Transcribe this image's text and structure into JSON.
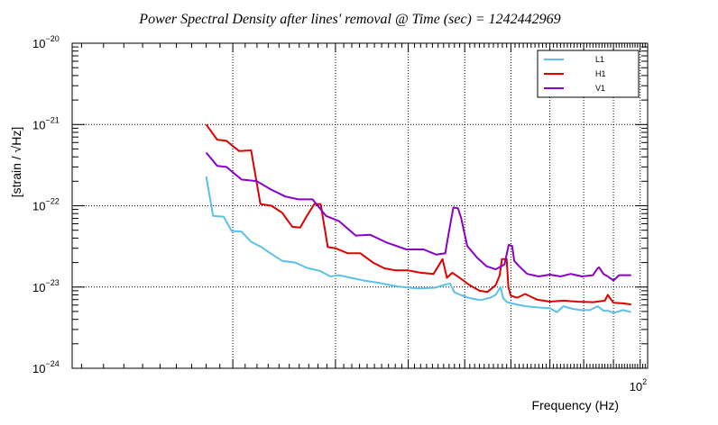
{
  "chart_data": {
    "type": "line",
    "title": "Power Spectral Density after lines' removal @ Time (sec) = 1242442969",
    "xlabel": "Frequency (Hz)",
    "ylabel": "[strain / √Hz]",
    "x_scale": "log",
    "y_scale": "log",
    "xlim": [
      10.6,
      103
    ],
    "ylim": [
      1e-24,
      1e-20
    ],
    "x_tick_labels": [
      {
        "value": 100,
        "base": "10",
        "exp": "2"
      }
    ],
    "y_tick_labels": [
      {
        "value": 1e-24,
        "base": "10",
        "exp": "−24"
      },
      {
        "value": 1e-23,
        "base": "10",
        "exp": "−23"
      },
      {
        "value": 1e-22,
        "base": "10",
        "exp": "−22"
      },
      {
        "value": 1e-21,
        "base": "10",
        "exp": "−21"
      },
      {
        "value": 1e-20,
        "base": "10",
        "exp": "−20"
      }
    ],
    "grid": true,
    "legend_position": "top-right",
    "series": [
      {
        "name": "L1",
        "color": "#5bc0eb",
        "x": [
          18.0,
          18.5,
          19.3,
          19.9,
          20.7,
          21.5,
          22.4,
          23.2,
          24.3,
          25.6,
          26.8,
          28.2,
          29.4,
          30.4,
          31.9,
          33.6,
          35.7,
          38.2,
          41.5,
          44.5,
          46.5,
          47.2,
          48.0,
          49.4,
          51.0,
          53.3,
          55.3,
          56.5,
          57.6,
          58.2,
          59.1,
          60.8,
          63.5,
          67.0,
          70.0,
          72.0,
          73.8,
          76.5,
          79.0,
          82.0,
          84.5,
          86.5,
          88.0,
          90.0,
          93.5,
          96.5
        ],
        "y": [
          2.3e-22,
          7.5e-23,
          7.3e-23,
          4.9e-23,
          4.8e-23,
          3.6e-23,
          3.1e-23,
          2.6e-23,
          2.1e-23,
          2e-23,
          1.72e-23,
          1.58e-23,
          1.35e-23,
          1.4e-23,
          1.3e-23,
          1.2e-23,
          1.12e-23,
          1.02e-23,
          9.6e-24,
          9.8e-24,
          1.08e-23,
          1.1e-23,
          8.6e-24,
          7.9e-24,
          7.3e-24,
          6.9e-24,
          7.4e-24,
          8e-24,
          1e-23,
          7.3e-24,
          6.5e-24,
          6.2e-24,
          5.8e-24,
          5.6e-24,
          5.5e-24,
          4.9e-24,
          5.8e-24,
          5.4e-24,
          5.2e-24,
          5.2e-24,
          5.8e-24,
          5.1e-24,
          5.1e-24,
          4.8e-24,
          5.2e-24,
          4.9e-24
        ]
      },
      {
        "name": "H1",
        "color": "#dd0000",
        "x": [
          18.0,
          18.8,
          19.5,
          20.5,
          21.5,
          22.3,
          23.3,
          24.3,
          25.3,
          26.1,
          26.8,
          27.6,
          28.3,
          29.1,
          30.0,
          31.5,
          33.1,
          34.8,
          36.4,
          38.1,
          40.0,
          42.0,
          44.2,
          45.8,
          46.6,
          47.6,
          49.0,
          51.0,
          53.0,
          54.7,
          56.5,
          57.4,
          57.9,
          59.0,
          59.4,
          60.0,
          61.5,
          63.5,
          66.5,
          70.0,
          74.0,
          78.0,
          83.0,
          87.0,
          88.0,
          90.0,
          93.5,
          96.5
        ],
        "y": [
          1e-21,
          6.5e-22,
          6.3e-22,
          4.7e-22,
          4.8e-22,
          1.05e-22,
          1e-22,
          8.2e-23,
          5.5e-23,
          5.4e-23,
          7.5e-23,
          1.05e-22,
          1.05e-22,
          3.1e-23,
          3e-23,
          2.6e-23,
          2.6e-23,
          2e-23,
          1.7e-23,
          1.6e-23,
          1.6e-23,
          1.5e-23,
          1.45e-23,
          2.2e-23,
          1.3e-23,
          1.5e-23,
          1.3e-23,
          1.05e-23,
          9e-24,
          8.7e-24,
          1.05e-23,
          1.4e-23,
          2.2e-23,
          2.2e-23,
          1e-23,
          7.8e-24,
          7.4e-24,
          8.2e-24,
          7e-24,
          6.6e-24,
          6.8e-24,
          6.6e-24,
          6.5e-24,
          6.8e-24,
          8e-24,
          6.4e-24,
          6.3e-24,
          6.1e-24
        ]
      },
      {
        "name": "V1",
        "color": "#8a00c6",
        "x": [
          18.0,
          18.8,
          19.5,
          20.7,
          22.0,
          23.2,
          24.6,
          25.9,
          27.4,
          28.9,
          30.4,
          32.5,
          34.4,
          36.8,
          39.7,
          42.5,
          44.7,
          46.3,
          46.7,
          47.8,
          48.7,
          49.3,
          50.5,
          52.5,
          54.5,
          56.5,
          58.5,
          59.5,
          60.3,
          60.8,
          62.0,
          64.0,
          67.0,
          70.0,
          73.0,
          76.0,
          79.5,
          83.0,
          84.5,
          85.0,
          86.5,
          88.0,
          90.0,
          92.0,
          96.5
        ],
        "y": [
          4.5e-22,
          3.1e-22,
          3e-22,
          2.1e-22,
          2e-22,
          1.6e-22,
          1.3e-22,
          1.2e-22,
          1.2e-22,
          7.5e-23,
          6.5e-23,
          4.3e-23,
          4.4e-23,
          3.5e-23,
          2.9e-23,
          2.9e-23,
          2.5e-23,
          2.6e-23,
          3.8e-23,
          9.5e-23,
          9.3e-23,
          7e-23,
          3.2e-23,
          2.3e-23,
          1.8e-23,
          1.65e-23,
          1.9e-23,
          3.3e-23,
          3.2e-23,
          2.1e-23,
          1.8e-23,
          1.45e-23,
          1.35e-23,
          1.42e-23,
          1.35e-23,
          1.45e-23,
          1.35e-23,
          1.4e-23,
          1.7e-23,
          1.75e-23,
          1.45e-23,
          1.35e-23,
          1.2e-23,
          1.4e-23,
          1.4e-23
        ]
      }
    ]
  }
}
